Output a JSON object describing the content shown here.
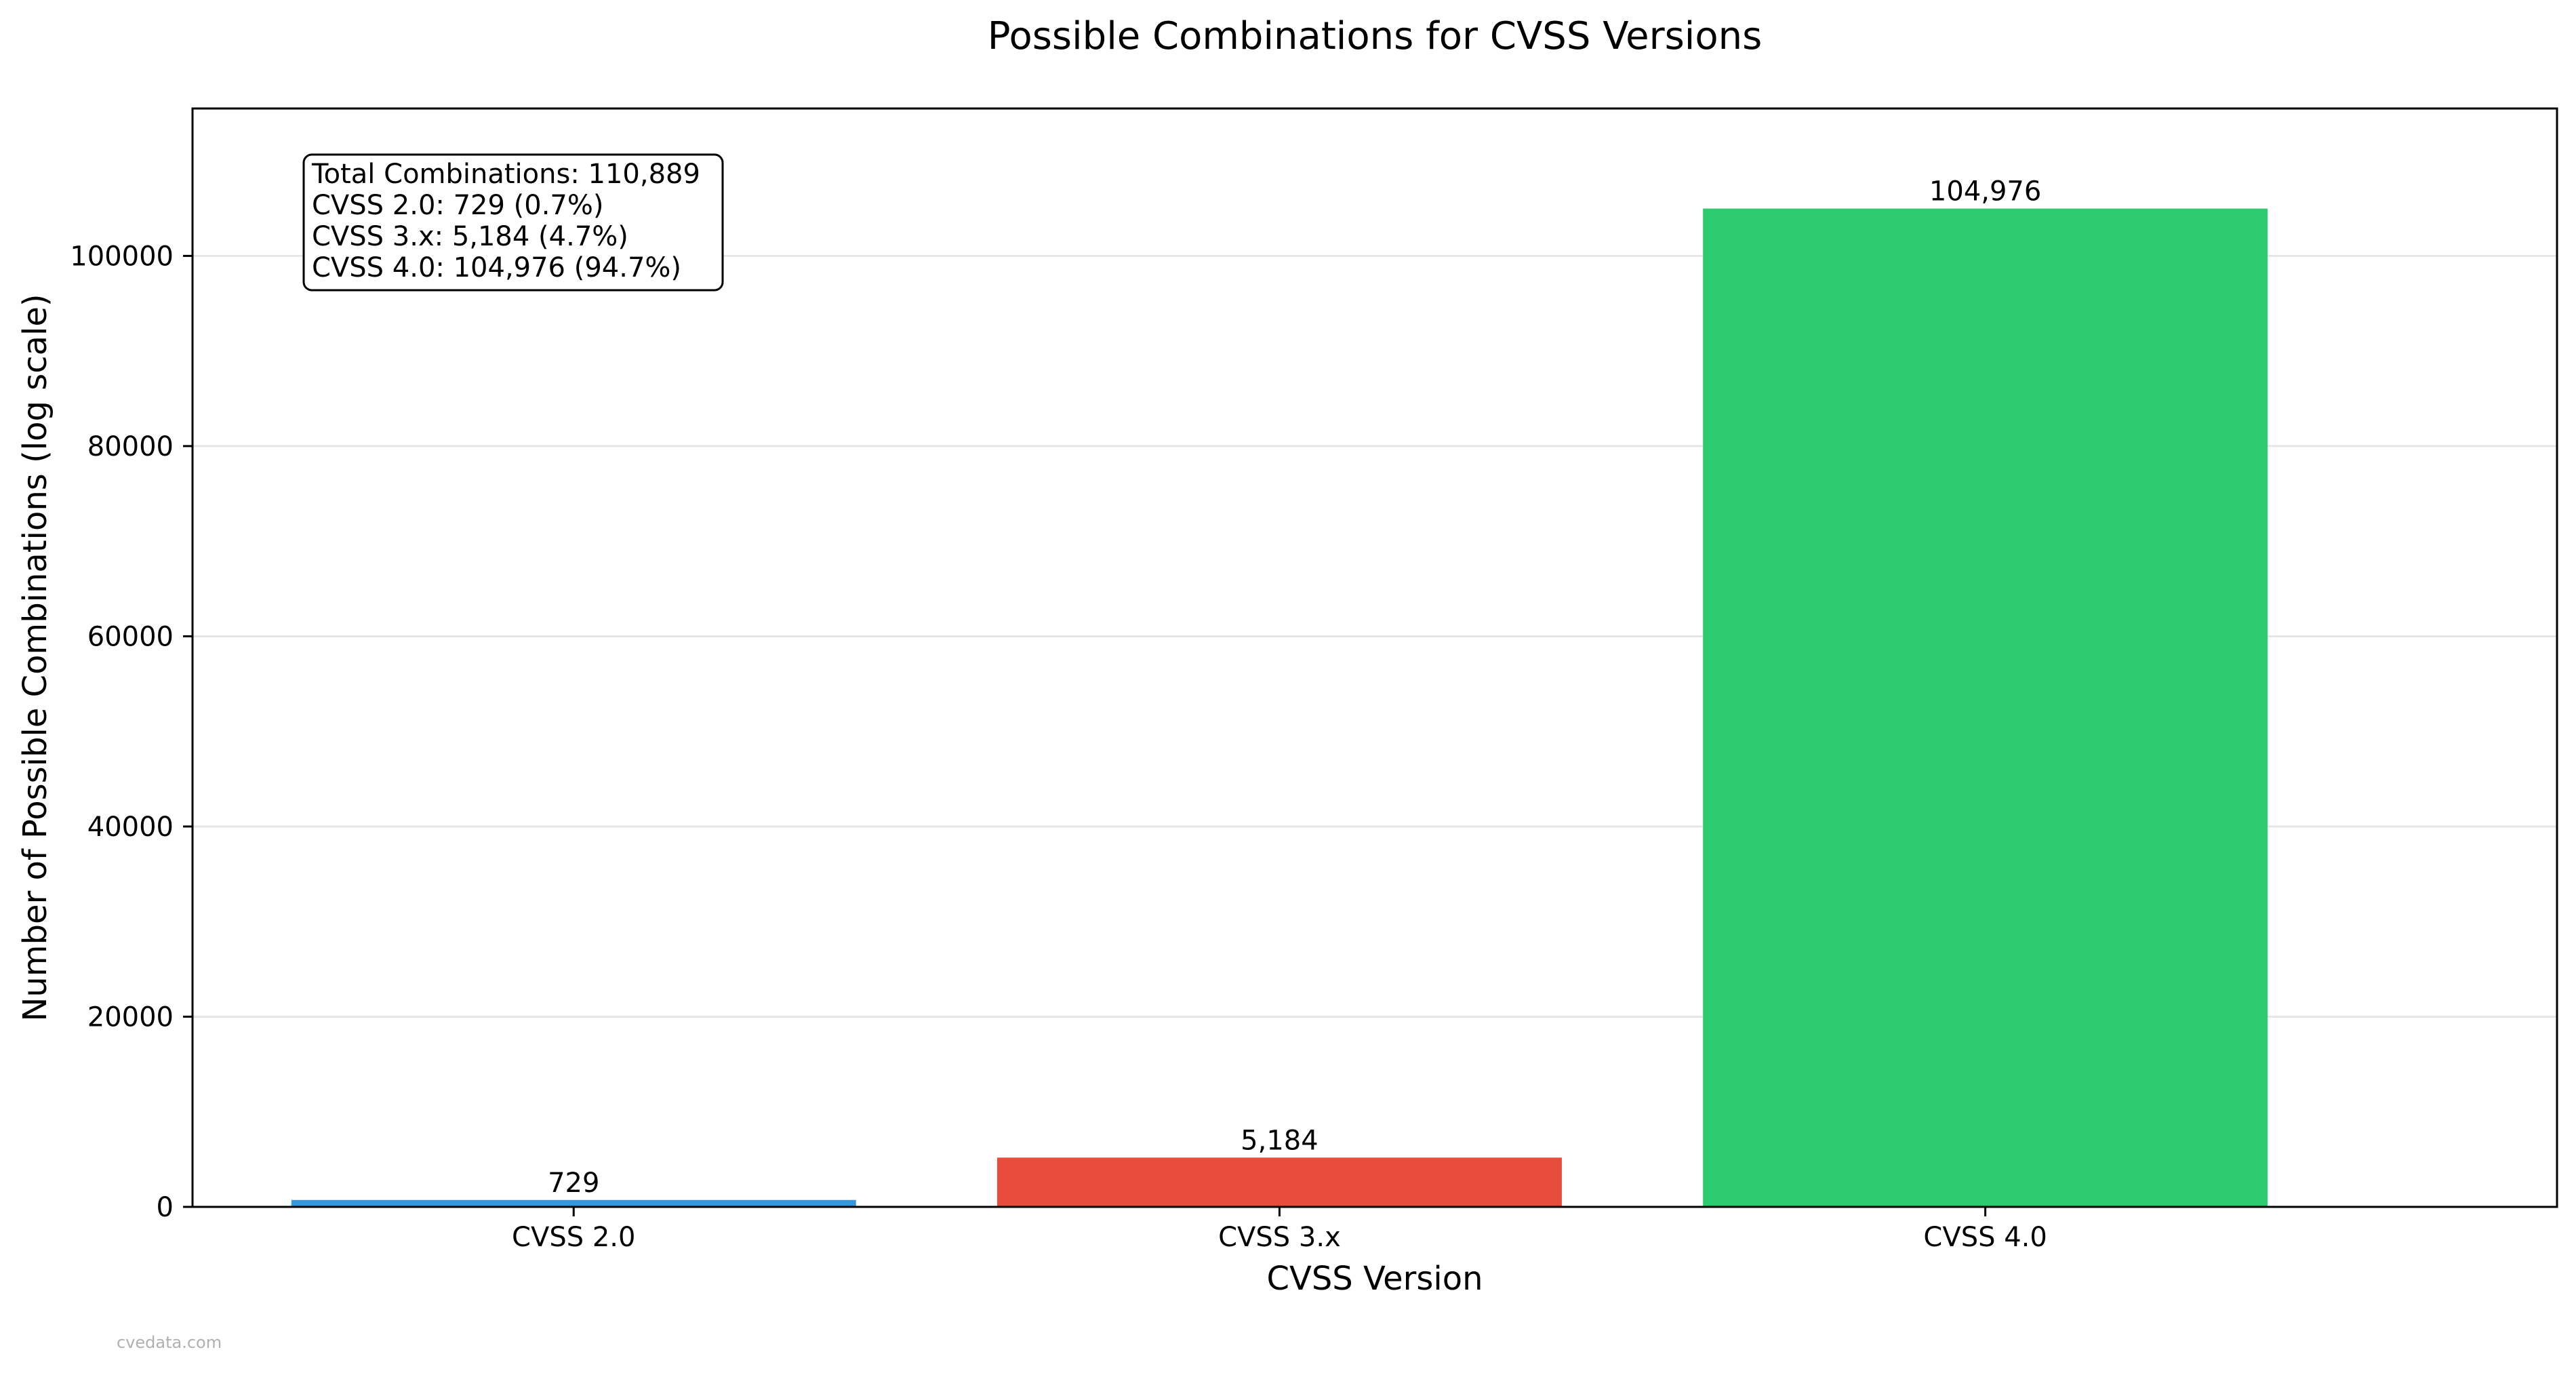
{
  "chart_data": {
    "type": "bar",
    "title": "Possible Combinations for CVSS Versions",
    "xlabel": "CVSS Version",
    "ylabel": "Number of Possible Combinations (log scale)",
    "categories": [
      "CVSS 2.0",
      "CVSS 3.x",
      "CVSS 4.0"
    ],
    "values": [
      729,
      5184,
      104976
    ],
    "data_labels": [
      "729",
      "5,184",
      "104,976"
    ],
    "colors": [
      "#3498db",
      "#e74c3c",
      "#2ecc71"
    ],
    "ylim": [
      0,
      115500
    ],
    "yticks": [
      0,
      20000,
      40000,
      60000,
      80000,
      100000
    ],
    "ytick_labels": [
      "0",
      "20000",
      "40000",
      "60000",
      "80000",
      "100000"
    ],
    "grid": "y",
    "annotation_box": {
      "placement": "top-left",
      "lines": [
        "Total Combinations: 110,889",
        "CVSS 2.0: 729 (0.7%)",
        "CVSS 3.x: 5,184 (4.7%)",
        "CVSS 4.0: 104,976 (94.7%)"
      ]
    }
  },
  "watermark": "cvedata.com"
}
